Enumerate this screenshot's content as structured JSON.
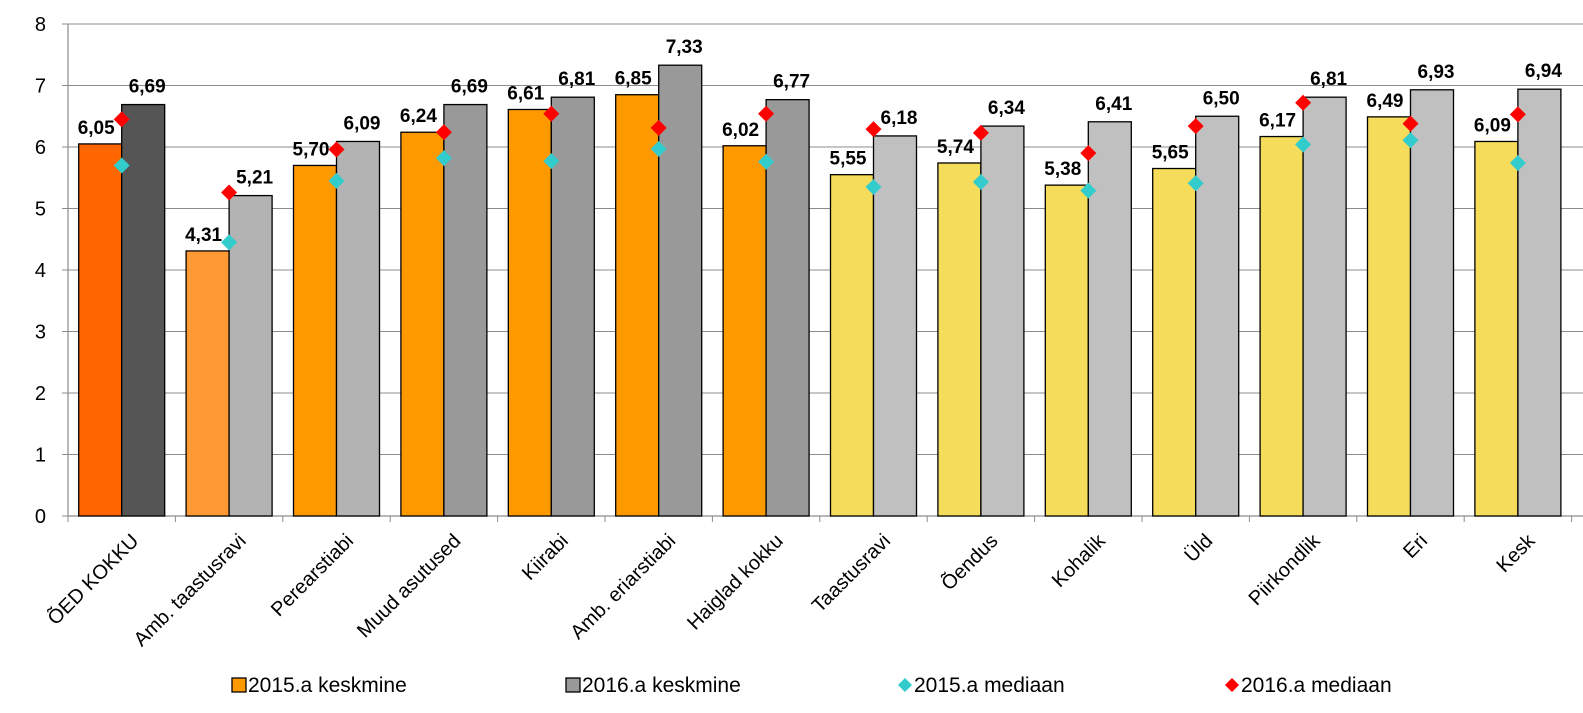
{
  "chart_data": {
    "type": "bar",
    "title": "",
    "xlabel": "",
    "ylabel": "",
    "ylim": [
      0,
      8
    ],
    "yticks": [
      "0",
      "1",
      "2",
      "3",
      "4",
      "5",
      "6",
      "7",
      "8"
    ],
    "grid": true,
    "legend_position": "bottom",
    "categories": [
      "ÕED KOKKU",
      "Amb. taastusravi",
      "Perearstiabi",
      "Muud asutused",
      "Kiirabi",
      "Amb. eriarstiabi",
      "Haiglad kokku",
      "Taastusravi",
      "Õendus",
      "Kohalik",
      "Üld",
      "Piirkondlik",
      "Eri",
      "Kesk"
    ],
    "series": [
      {
        "name": "2015.a keskmine",
        "kind": "bar",
        "values": [
          6.05,
          4.31,
          5.7,
          6.24,
          6.61,
          6.85,
          6.02,
          5.55,
          5.74,
          5.38,
          5.65,
          6.17,
          6.49,
          6.09
        ],
        "labels": [
          "6,05",
          "4,31",
          "5,70",
          "6,24",
          "6,61",
          "6,85",
          "6,02",
          "5,55",
          "5,74",
          "5,38",
          "5,65",
          "6,17",
          "6,49",
          "6,09"
        ],
        "colors": [
          "#ff6600",
          "#ff9933",
          "#ff9900",
          "#ff9900",
          "#ff9900",
          "#ff9900",
          "#ff9900",
          "#f5dc5a",
          "#f5dc5a",
          "#f5dc5a",
          "#f5dc5a",
          "#f5dc5a",
          "#f5dc5a",
          "#f5dc5a"
        ],
        "legend_color": "#ff9900"
      },
      {
        "name": "2016.a keskmine",
        "kind": "bar",
        "values": [
          6.69,
          5.21,
          6.09,
          6.69,
          6.81,
          7.33,
          6.77,
          6.18,
          6.34,
          6.41,
          6.5,
          6.81,
          6.93,
          6.94
        ],
        "labels": [
          "6,69",
          "5,21",
          "6,09",
          "6,69",
          "6,81",
          "7,33",
          "6,77",
          "6,18",
          "6,34",
          "6,41",
          "6,50",
          "6,81",
          "6,93",
          "6,94"
        ],
        "colors": [
          "#555555",
          "#b3b3b3",
          "#b3b3b3",
          "#999999",
          "#999999",
          "#999999",
          "#999999",
          "#c0c0c0",
          "#c0c0c0",
          "#c0c0c0",
          "#c0c0c0",
          "#c0c0c0",
          "#c0c0c0",
          "#c0c0c0"
        ],
        "legend_color": "#999999"
      },
      {
        "name": "2015.a mediaan",
        "kind": "marker",
        "marker": "diamond",
        "color": "#33cccc",
        "values": [
          5.7,
          4.45,
          5.45,
          5.82,
          5.77,
          5.97,
          5.76,
          5.35,
          5.43,
          5.29,
          5.41,
          6.04,
          6.11,
          5.74
        ]
      },
      {
        "name": "2016.a mediaan",
        "kind": "marker",
        "marker": "diamond",
        "color": "#ff0000",
        "values": [
          6.45,
          5.26,
          5.96,
          6.24,
          6.54,
          6.31,
          6.54,
          6.29,
          6.23,
          5.9,
          6.34,
          6.72,
          6.38,
          6.53
        ]
      }
    ]
  }
}
